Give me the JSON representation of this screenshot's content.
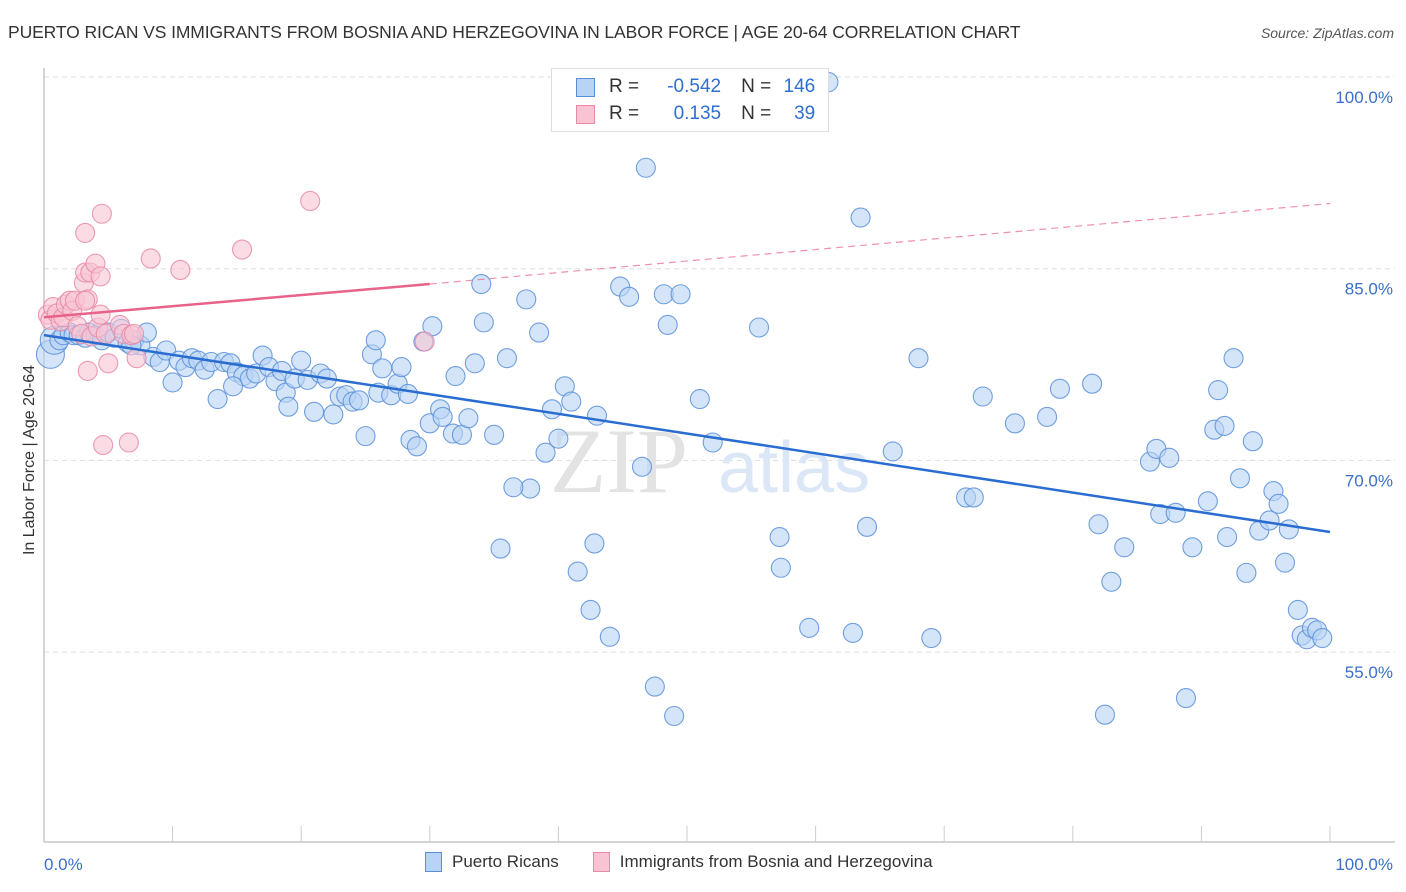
{
  "title": "PUERTO RICAN VS IMMIGRANTS FROM BOSNIA AND HERZEGOVINA IN LABOR FORCE | AGE 20-64 CORRELATION CHART",
  "source": "Source: ZipAtlas.com",
  "watermark": {
    "zip": "ZIP",
    "atlas": "atlas"
  },
  "legend_top": {
    "rows": [
      {
        "r_label": "R =",
        "r_value": "-0.542",
        "n_label": "N =",
        "n_value": "146"
      },
      {
        "r_label": "R =",
        "r_value": "0.135",
        "n_label": "N =",
        "n_value": "39"
      }
    ]
  },
  "colors": {
    "blue_fill": "#b8d3f5",
    "blue_stroke": "#5a8fd8",
    "blue_line": "#2a6dd0",
    "pink_fill": "#f8c4d3",
    "pink_stroke": "#e889a6",
    "pink_line": "#e8628a",
    "tick_label": "#3b6fc9",
    "grid": "#dddddd"
  },
  "chart_data": {
    "type": "scatter",
    "title": "PUERTO RICAN VS IMMIGRANTS FROM BOSNIA AND HERZEGOVINA IN LABOR FORCE | AGE 20-64 CORRELATION CHART",
    "xlabel": "",
    "ylabel": "In Labor Force | Age 20-64",
    "xlim": [
      0,
      100
    ],
    "ylim": [
      40,
      102
    ],
    "x_tick_labels": [
      "0.0%",
      "100.0%"
    ],
    "y_ticks": [
      100,
      85,
      70,
      55
    ],
    "y_tick_labels": [
      "100.0%",
      "85.0%",
      "70.0%",
      "55.0%"
    ],
    "grid": true,
    "legend_placement": "bottom",
    "series": [
      {
        "name": "Puerto Ricans",
        "R": -0.542,
        "N": 146,
        "trend": {
          "x": [
            0,
            100
          ],
          "y": [
            79.8,
            64.4
          ]
        },
        "points": [
          [
            0.5,
            78.3
          ],
          [
            0.8,
            79.4
          ],
          [
            1.2,
            79.4
          ],
          [
            1.5,
            79.8
          ],
          [
            2.0,
            80.0
          ],
          [
            2.3,
            79.8
          ],
          [
            2.7,
            79.8
          ],
          [
            3.2,
            79.6
          ],
          [
            3.5,
            80.0
          ],
          [
            4.0,
            79.8
          ],
          [
            4.5,
            79.4
          ],
          [
            5.0,
            80.0
          ],
          [
            5.5,
            79.6
          ],
          [
            6.0,
            80.3
          ],
          [
            6.5,
            79.2
          ],
          [
            7.0,
            79.4
          ],
          [
            7.5,
            79.0
          ],
          [
            8.0,
            80.0
          ],
          [
            8.5,
            78.1
          ],
          [
            9.0,
            77.7
          ],
          [
            9.5,
            78.6
          ],
          [
            10.0,
            76.1
          ],
          [
            10.5,
            77.8
          ],
          [
            11.0,
            77.3
          ],
          [
            11.5,
            78.0
          ],
          [
            12.0,
            77.8
          ],
          [
            12.5,
            77.1
          ],
          [
            13.0,
            77.7
          ],
          [
            13.5,
            74.8
          ],
          [
            14.0,
            77.7
          ],
          [
            14.5,
            77.6
          ],
          [
            15.0,
            76.9
          ],
          [
            15.5,
            76.6
          ],
          [
            16.0,
            76.4
          ],
          [
            16.5,
            76.8
          ],
          [
            17.0,
            78.2
          ],
          [
            17.5,
            77.3
          ],
          [
            18.0,
            76.2
          ],
          [
            18.5,
            77.0
          ],
          [
            18.8,
            75.3
          ],
          [
            19.0,
            74.2
          ],
          [
            19.5,
            76.4
          ],
          [
            20.0,
            77.8
          ],
          [
            20.5,
            76.3
          ],
          [
            21.0,
            73.8
          ],
          [
            21.5,
            76.8
          ],
          [
            22.0,
            76.4
          ],
          [
            22.5,
            73.6
          ],
          [
            23.0,
            75.0
          ],
          [
            23.5,
            75.1
          ],
          [
            24.0,
            74.6
          ],
          [
            24.5,
            74.7
          ],
          [
            25.0,
            71.9
          ],
          [
            25.5,
            78.3
          ],
          [
            26.0,
            75.3
          ],
          [
            26.3,
            77.2
          ],
          [
            27.0,
            75.1
          ],
          [
            27.5,
            76.0
          ],
          [
            27.8,
            77.3
          ],
          [
            28.3,
            75.2
          ],
          [
            28.5,
            71.6
          ],
          [
            29.0,
            71.1
          ],
          [
            29.5,
            79.3
          ],
          [
            30.0,
            72.9
          ],
          [
            30.2,
            80.5
          ],
          [
            30.8,
            74.0
          ],
          [
            31.0,
            73.4
          ],
          [
            31.8,
            72.1
          ],
          [
            32.0,
            76.6
          ],
          [
            32.5,
            72.0
          ],
          [
            33.0,
            73.3
          ],
          [
            33.5,
            77.6
          ],
          [
            34.0,
            83.8
          ],
          [
            34.2,
            80.8
          ],
          [
            35.0,
            72.0
          ],
          [
            35.5,
            63.1
          ],
          [
            36.0,
            78.0
          ],
          [
            37.5,
            82.6
          ],
          [
            37.8,
            67.8
          ],
          [
            38.5,
            80.0
          ],
          [
            39.0,
            70.6
          ],
          [
            39.5,
            74.0
          ],
          [
            40.0,
            71.7
          ],
          [
            40.5,
            75.8
          ],
          [
            41.0,
            74.6
          ],
          [
            41.5,
            61.3
          ],
          [
            42.5,
            58.3
          ],
          [
            43.0,
            73.5
          ],
          [
            44.0,
            56.2
          ],
          [
            44.8,
            83.6
          ],
          [
            45.5,
            82.8
          ],
          [
            46.5,
            69.5
          ],
          [
            46.8,
            92.9
          ],
          [
            47.5,
            52.3
          ],
          [
            48.2,
            83.0
          ],
          [
            48.5,
            80.6
          ],
          [
            49.0,
            50.0
          ],
          [
            49.5,
            83.0
          ],
          [
            51.0,
            74.8
          ],
          [
            52.0,
            71.4
          ],
          [
            55.6,
            80.4
          ],
          [
            57.3,
            61.6
          ],
          [
            59.5,
            56.9
          ],
          [
            61.0,
            99.6
          ],
          [
            62.9,
            56.5
          ],
          [
            63.5,
            89.0
          ],
          [
            64.0,
            64.8
          ],
          [
            66.0,
            70.7
          ],
          [
            68.0,
            78.0
          ],
          [
            69.0,
            56.1
          ],
          [
            71.7,
            67.1
          ],
          [
            72.3,
            67.1
          ],
          [
            73.0,
            75.0
          ],
          [
            75.5,
            72.9
          ],
          [
            78.0,
            73.4
          ],
          [
            79.0,
            75.6
          ],
          [
            81.5,
            76.0
          ],
          [
            82.0,
            65.0
          ],
          [
            82.5,
            50.1
          ],
          [
            83.0,
            60.5
          ],
          [
            84.0,
            63.2
          ],
          [
            86.0,
            69.9
          ],
          [
            86.5,
            70.9
          ],
          [
            86.8,
            65.8
          ],
          [
            87.5,
            70.2
          ],
          [
            88.0,
            65.9
          ],
          [
            88.8,
            51.4
          ],
          [
            89.3,
            63.2
          ],
          [
            90.5,
            66.8
          ],
          [
            91.0,
            72.4
          ],
          [
            91.3,
            75.5
          ],
          [
            91.8,
            72.7
          ],
          [
            92.0,
            64.0
          ],
          [
            92.5,
            78.0
          ],
          [
            93.0,
            68.6
          ],
          [
            93.5,
            61.2
          ],
          [
            94.0,
            71.5
          ],
          [
            94.5,
            64.5
          ],
          [
            95.3,
            65.3
          ],
          [
            95.6,
            67.6
          ],
          [
            96.0,
            66.6
          ],
          [
            96.5,
            62.0
          ],
          [
            96.8,
            64.6
          ],
          [
            97.5,
            58.3
          ],
          [
            97.8,
            56.3
          ],
          [
            98.2,
            56.0
          ],
          [
            98.6,
            56.9
          ],
          [
            99.0,
            56.7
          ],
          [
            99.4,
            56.1
          ],
          [
            57.2,
            64.0
          ],
          [
            58.8,
            99.8
          ],
          [
            42.8,
            63.5
          ],
          [
            36.5,
            67.9
          ],
          [
            25.8,
            79.4
          ],
          [
            14.7,
            75.8
          ],
          [
            6.8,
            79.0
          ]
        ]
      },
      {
        "name": "Immigrants from Bosnia and Herzegovina",
        "R": 0.135,
        "N": 39,
        "trend": {
          "x": [
            0,
            30
          ],
          "y": [
            81.2,
            83.8
          ]
        },
        "trend_dashed": {
          "x": [
            30,
            100
          ],
          "y": [
            83.8,
            90.1
          ]
        },
        "points": [
          [
            0.3,
            81.4
          ],
          [
            0.5,
            81.0
          ],
          [
            0.7,
            82.0
          ],
          [
            1.0,
            81.5
          ],
          [
            1.3,
            80.9
          ],
          [
            1.5,
            81.2
          ],
          [
            1.7,
            82.2
          ],
          [
            2.0,
            82.5
          ],
          [
            2.2,
            81.7
          ],
          [
            2.4,
            82.5
          ],
          [
            2.6,
            80.5
          ],
          [
            2.9,
            79.9
          ],
          [
            3.1,
            83.9
          ],
          [
            3.2,
            84.7
          ],
          [
            3.4,
            82.6
          ],
          [
            3.6,
            84.7
          ],
          [
            3.2,
            82.5
          ],
          [
            3.2,
            87.8
          ],
          [
            3.4,
            77.0
          ],
          [
            3.7,
            79.7
          ],
          [
            4.0,
            85.4
          ],
          [
            4.2,
            80.4
          ],
          [
            4.4,
            84.4
          ],
          [
            4.4,
            81.4
          ],
          [
            4.5,
            89.3
          ],
          [
            4.6,
            71.2
          ],
          [
            4.8,
            79.9
          ],
          [
            5.0,
            77.6
          ],
          [
            5.9,
            80.6
          ],
          [
            6.2,
            79.9
          ],
          [
            6.6,
            71.4
          ],
          [
            6.8,
            79.8
          ],
          [
            7.0,
            79.9
          ],
          [
            7.2,
            78.0
          ],
          [
            8.3,
            85.8
          ],
          [
            10.6,
            84.9
          ],
          [
            15.4,
            86.5
          ],
          [
            20.7,
            90.3
          ],
          [
            29.6,
            79.3
          ]
        ]
      }
    ]
  },
  "bottom_legend": [
    {
      "label": "Puerto Ricans"
    },
    {
      "label": "Immigrants from Bosnia and Herzegovina"
    }
  ]
}
